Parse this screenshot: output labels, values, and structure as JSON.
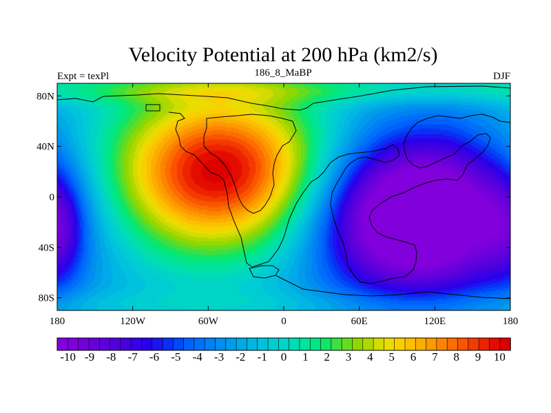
{
  "chart_data": {
    "type": "heatmap",
    "title": "Velocity Potential at 200 hPa (km2/s)",
    "left_string": "Expt = texPl",
    "center_string": "186_8_MaBP",
    "right_string": "DJF",
    "x_ticks": [
      {
        "value": -180,
        "label": "180"
      },
      {
        "value": -120,
        "label": "120W"
      },
      {
        "value": -60,
        "label": "60W"
      },
      {
        "value": 0,
        "label": "0"
      },
      {
        "value": 60,
        "label": "60E"
      },
      {
        "value": 120,
        "label": "120E"
      },
      {
        "value": 180,
        "label": "180"
      }
    ],
    "y_ticks": [
      {
        "value": 80,
        "label": "80N"
      },
      {
        "value": 40,
        "label": "40N"
      },
      {
        "value": 0,
        "label": "0"
      },
      {
        "value": -40,
        "label": "40S"
      },
      {
        "value": -80,
        "label": "80S"
      }
    ],
    "xlim": [
      -180,
      180
    ],
    "ylim": [
      -90,
      90
    ],
    "field_features": [
      {
        "name": "maximum",
        "lon": -50,
        "lat": 20,
        "value": 10
      },
      {
        "name": "minimum",
        "lon": 105,
        "lat": -15,
        "value": -10
      }
    ],
    "colorbar": {
      "min": -10.5,
      "max": 10.5,
      "step": 0.5,
      "labels": [
        "-10",
        "-9",
        "-8",
        "-7",
        "-6",
        "-5",
        "-4",
        "-3",
        "-2",
        "-1",
        "0",
        "1",
        "2",
        "3",
        "4",
        "5",
        "6",
        "7",
        "8",
        "9",
        "10"
      ],
      "colors": [
        "#8200dc",
        "#7c00dc",
        "#7200dc",
        "#6800dc",
        "#5e00dc",
        "#5400dc",
        "#4600e0",
        "#3800e4",
        "#2a00ea",
        "#1c14f0",
        "#0a30f4",
        "#0048f8",
        "#0060fc",
        "#0070fa",
        "#0080f5",
        "#008ef0",
        "#009ceb",
        "#00aae8",
        "#00b6e2",
        "#00c2dc",
        "#00ccd4",
        "#00d4c6",
        "#00dcb4",
        "#00e29e",
        "#00e684",
        "#10e664",
        "#3ce040",
        "#66dc20",
        "#8ed800",
        "#b0d800",
        "#d2dc00",
        "#eadc00",
        "#f8d000",
        "#fcc000",
        "#fcae00",
        "#fc9a00",
        "#fc8400",
        "#fc6c00",
        "#fa5400",
        "#f43a00",
        "#ec2200",
        "#e40c00",
        "#dc0000"
      ]
    }
  }
}
